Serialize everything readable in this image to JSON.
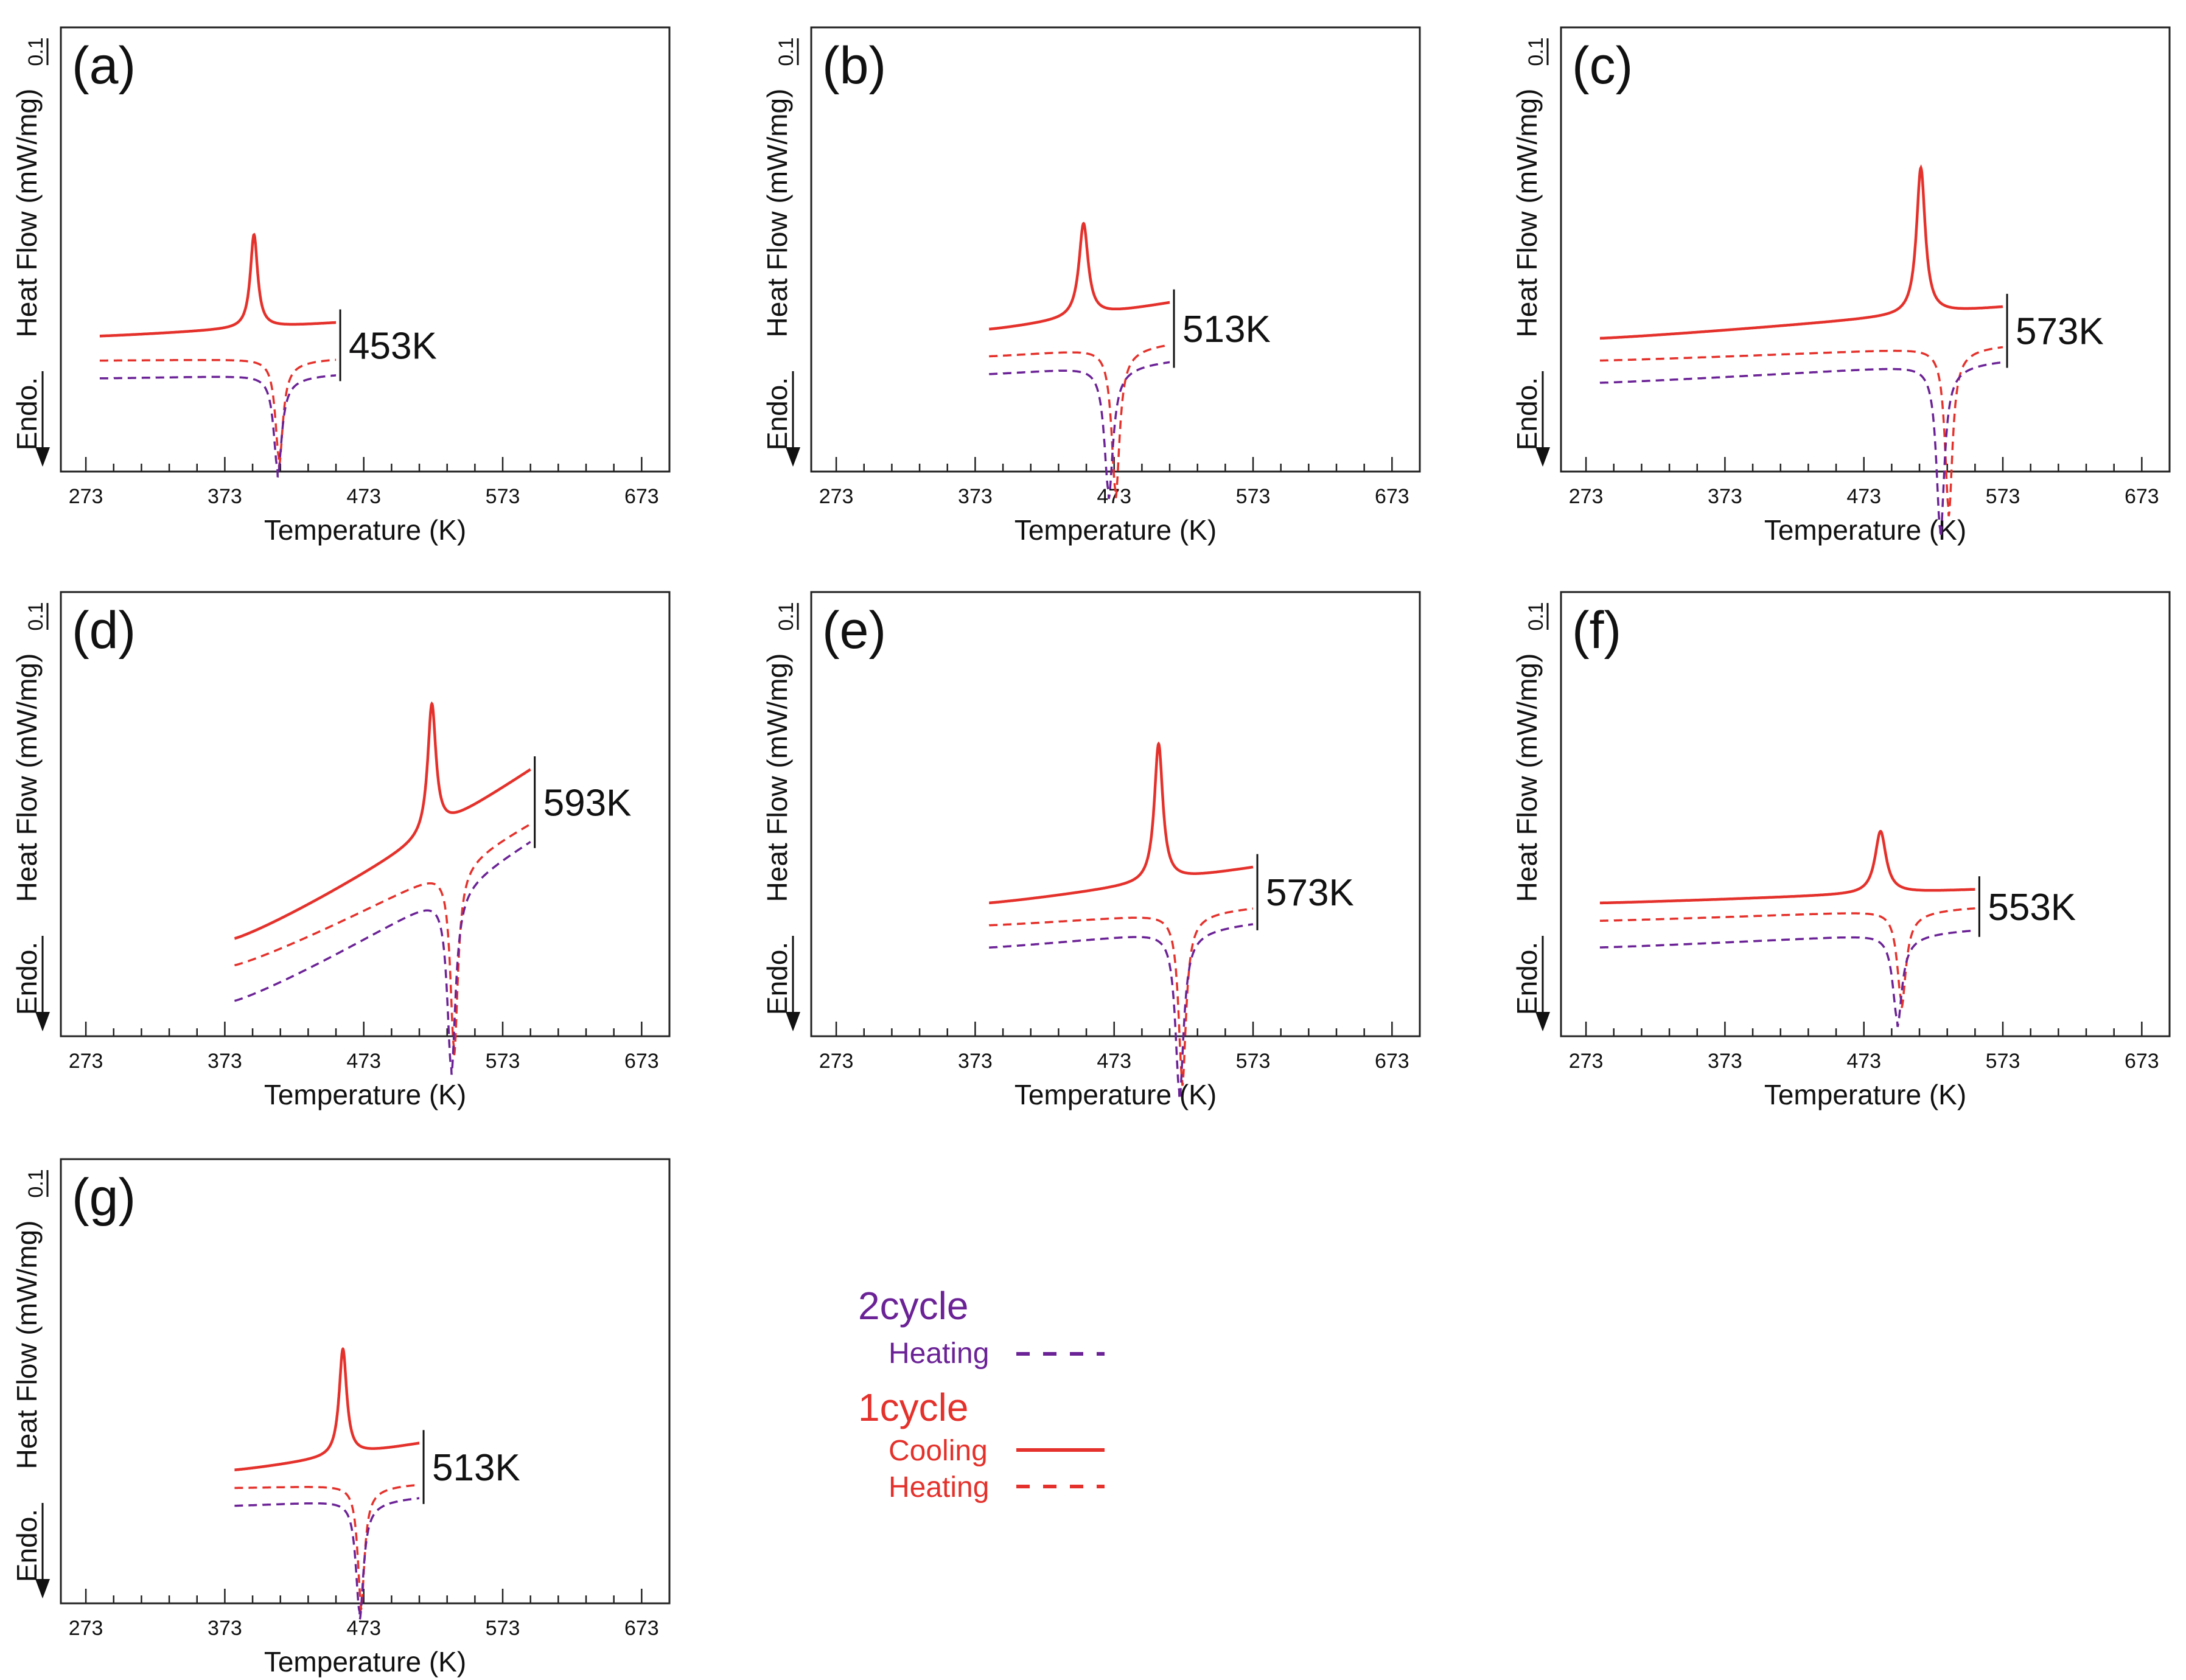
{
  "colors": {
    "cooling_1": "#e4312b",
    "heating_1": "#e4312b",
    "heating_2": "#6b2296",
    "axis": "#222222",
    "text": "#111111"
  },
  "axis_common": {
    "xlabel": "Temperature (K)",
    "ylabel": "Heat Flow (mW/mg)",
    "endo_label": "Endo.",
    "scale_bar_label": "0.1",
    "x_ticks": [
      273,
      373,
      473,
      573,
      673
    ],
    "x_ticks_text": [
      "273",
      "373",
      "473",
      "573",
      "673"
    ],
    "xlim": [
      255,
      693
    ]
  },
  "legend": {
    "group2": "2cycle",
    "group2_heating": "Heating",
    "group1": "1cycle",
    "group1_cooling": "Cooling",
    "group1_heating": "Heating"
  },
  "chart_data": [
    {
      "type": "line",
      "label": "(a)",
      "annotation": "453K",
      "x_range": [
        283,
        453
      ],
      "peak_temperature": 420,
      "series": [
        {
          "name": "1cycle Cooling",
          "style": "solid",
          "color": "#e4312b",
          "baseline": [
            0.305,
            0.335
          ],
          "peak_at": 394,
          "peak_height": 0.21,
          "peak_width": 3.2
        },
        {
          "name": "1cycle Heating",
          "style": "dashed",
          "color": "#e4312b",
          "baseline": [
            0.25,
            0.255
          ],
          "peak_at": 412,
          "peak_height": -0.22,
          "peak_width": 3.3
        },
        {
          "name": "2cycle Heating",
          "style": "dashed",
          "color": "#6b2296",
          "baseline": [
            0.21,
            0.22
          ],
          "peak_at": 411,
          "peak_height": -0.21,
          "peak_width": 3.5
        }
      ],
      "xlabel": "Temperature (K)",
      "ylabel": "Heat Flow (mW/mg)"
    },
    {
      "type": "line",
      "label": "(b)",
      "annotation": "513K",
      "x_range": [
        383,
        513
      ],
      "peak_temperature": 480,
      "series": [
        {
          "name": "1cycle Cooling",
          "style": "solid",
          "color": "#e4312b",
          "baseline": [
            0.32,
            0.38
          ],
          "peak_at": 451,
          "peak_height": 0.21,
          "peak_width": 4.0
        },
        {
          "name": "1cycle Heating",
          "style": "dashed",
          "color": "#e4312b",
          "baseline": [
            0.26,
            0.29
          ],
          "peak_at": 474,
          "peak_height": -0.32,
          "peak_width": 3.5
        },
        {
          "name": "2cycle Heating",
          "style": "dashed",
          "color": "#6b2296",
          "baseline": [
            0.22,
            0.25
          ],
          "peak_at": 469,
          "peak_height": -0.28,
          "peak_width": 3.8
        }
      ],
      "xlabel": "Temperature (K)",
      "ylabel": "Heat Flow (mW/mg)"
    },
    {
      "type": "line",
      "label": "(c)",
      "annotation": "573K",
      "x_range": [
        283,
        573
      ],
      "peak_temperature": 540,
      "series": [
        {
          "name": "1cycle Cooling",
          "style": "solid",
          "color": "#e4312b",
          "baseline": [
            0.3,
            0.37
          ],
          "peak_at": 514,
          "peak_height": 0.33,
          "peak_width": 3.8
        },
        {
          "name": "1cycle Heating",
          "style": "dashed",
          "color": "#e4312b",
          "baseline": [
            0.25,
            0.285
          ],
          "peak_at": 534,
          "peak_height": -0.36,
          "peak_width": 3.3
        },
        {
          "name": "2cycle Heating",
          "style": "dashed",
          "color": "#6b2296",
          "baseline": [
            0.2,
            0.25
          ],
          "peak_at": 528,
          "peak_height": -0.37,
          "peak_width": 3.5
        }
      ],
      "xlabel": "Temperature (K)",
      "ylabel": "Heat Flow (mW/mg)"
    },
    {
      "type": "line",
      "label": "(d)",
      "annotation": "593K",
      "x_range": [
        380,
        593
      ],
      "peak_temperature": 540,
      "series": [
        {
          "name": "1cycle Cooling",
          "style": "solid",
          "color": "#e4312b",
          "baseline": [
            0.22,
            0.6
          ],
          "peak_at": 522,
          "peak_height": 0.29,
          "peak_width": 3.6
        },
        {
          "name": "1cycle Heating",
          "style": "dashed",
          "color": "#e4312b",
          "baseline": [
            0.16,
            0.48
          ],
          "peak_at": 538,
          "peak_height": -0.41,
          "peak_width": 3.3
        },
        {
          "name": "2cycle Heating",
          "style": "dashed",
          "color": "#6b2296",
          "baseline": [
            0.08,
            0.44
          ],
          "peak_at": 536,
          "peak_height": -0.4,
          "peak_width": 3.6
        }
      ],
      "xlabel": "Temperature (K)",
      "ylabel": "Heat Flow (mW/mg)"
    },
    {
      "type": "line",
      "label": "(e)",
      "annotation": "573K",
      "x_range": [
        383,
        573
      ],
      "peak_temperature": 530,
      "series": [
        {
          "name": "1cycle Cooling",
          "style": "solid",
          "color": "#e4312b",
          "baseline": [
            0.3,
            0.38
          ],
          "peak_at": 505,
          "peak_height": 0.31,
          "peak_width": 3.7
        },
        {
          "name": "1cycle Heating",
          "style": "dashed",
          "color": "#e4312b",
          "baseline": [
            0.25,
            0.29
          ],
          "peak_at": 522,
          "peak_height": -0.37,
          "peak_width": 3.3
        },
        {
          "name": "2cycle Heating",
          "style": "dashed",
          "color": "#6b2296",
          "baseline": [
            0.2,
            0.255
          ],
          "peak_at": 520,
          "peak_height": -0.36,
          "peak_width": 3.6
        }
      ],
      "xlabel": "Temperature (K)",
      "ylabel": "Heat Flow (mW/mg)"
    },
    {
      "type": "line",
      "label": "(f)",
      "annotation": "553K",
      "x_range": [
        283,
        553
      ],
      "peak_temperature": 500,
      "series": [
        {
          "name": "1cycle Cooling",
          "style": "solid",
          "color": "#e4312b",
          "baseline": [
            0.3,
            0.33
          ],
          "peak_at": 485,
          "peak_height": 0.14,
          "peak_width": 4.8
        },
        {
          "name": "1cycle Heating",
          "style": "dashed",
          "color": "#e4312b",
          "baseline": [
            0.26,
            0.29
          ],
          "peak_at": 500,
          "peak_height": -0.2,
          "peak_width": 3.8
        },
        {
          "name": "2cycle Heating",
          "style": "dashed",
          "color": "#6b2296",
          "baseline": [
            0.2,
            0.24
          ],
          "peak_at": 497,
          "peak_height": -0.19,
          "peak_width": 4.0
        }
      ],
      "xlabel": "Temperature (K)",
      "ylabel": "Heat Flow (mW/mg)"
    },
    {
      "type": "line",
      "label": "(g)",
      "annotation": "513K",
      "x_range": [
        380,
        513
      ],
      "peak_temperature": 470,
      "series": [
        {
          "name": "1cycle Cooling",
          "style": "solid",
          "color": "#e4312b",
          "baseline": [
            0.3,
            0.36
          ],
          "peak_at": 458,
          "peak_height": 0.24,
          "peak_width": 3.3
        },
        {
          "name": "1cycle Heating",
          "style": "dashed",
          "color": "#e4312b",
          "baseline": [
            0.26,
            0.27
          ],
          "peak_at": 471,
          "peak_height": -0.26,
          "peak_width": 3.0
        },
        {
          "name": "2cycle Heating",
          "style": "dashed",
          "color": "#6b2296",
          "baseline": [
            0.22,
            0.24
          ],
          "peak_at": 470,
          "peak_height": -0.25,
          "peak_width": 3.3
        }
      ],
      "xlabel": "Temperature (K)",
      "ylabel": "Heat Flow (mW/mg)"
    }
  ]
}
